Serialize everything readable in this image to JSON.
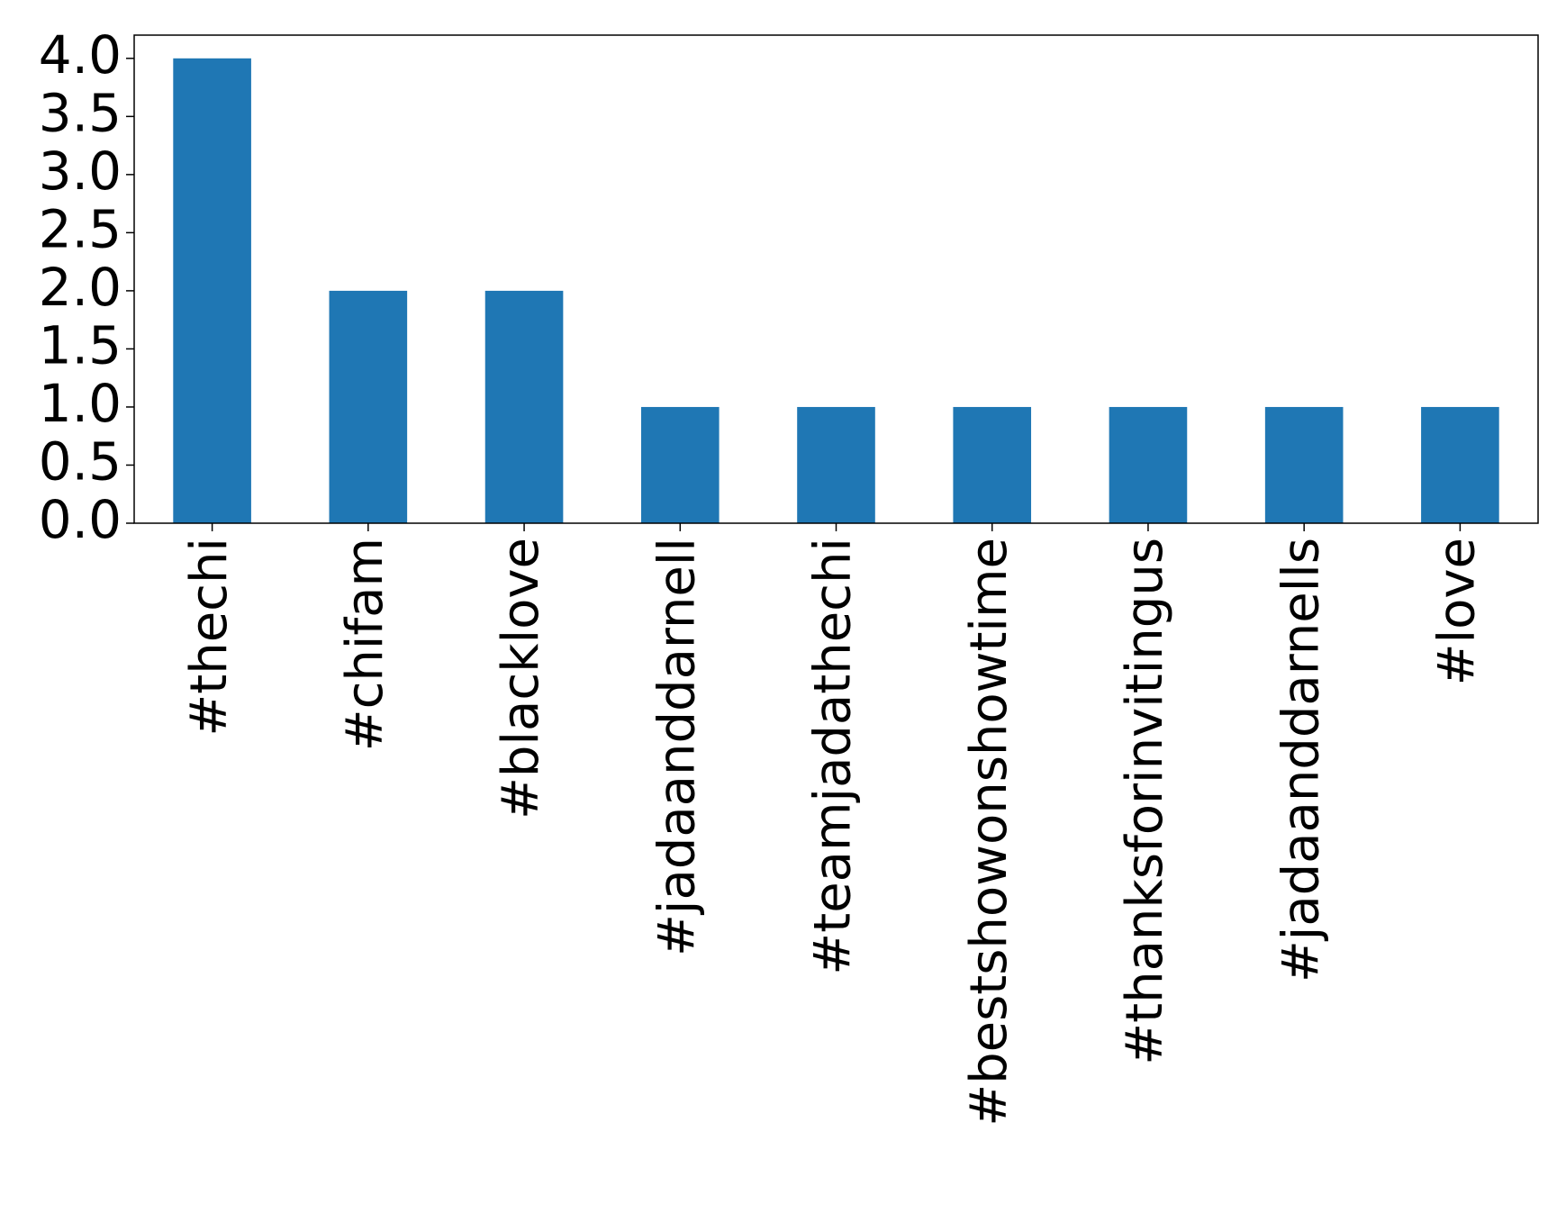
{
  "chart_data": {
    "type": "bar",
    "categories": [
      "#thechi",
      "#chifam",
      "#blacklove",
      "#jadaanddarnell",
      "#teamjadathechi",
      "#bestshowonshowtime",
      "#thanksforinvitingus",
      "#jadaanddarnells",
      "#love"
    ],
    "values": [
      4,
      2,
      2,
      1,
      1,
      1,
      1,
      1,
      1
    ],
    "color": "#1f77b4",
    "ylim": [
      0,
      4.2
    ],
    "yticks": [
      {
        "value": 0,
        "label": "0.0"
      },
      0.5,
      {
        "value": 1,
        "label": "1.0"
      },
      1.5,
      {
        "value": 2,
        "label": "2.0"
      },
      2.5,
      {
        "value": 3,
        "label": "3.0"
      },
      3.5,
      {
        "value": 4,
        "label": "4.0"
      }
    ],
    "grid": false
  }
}
